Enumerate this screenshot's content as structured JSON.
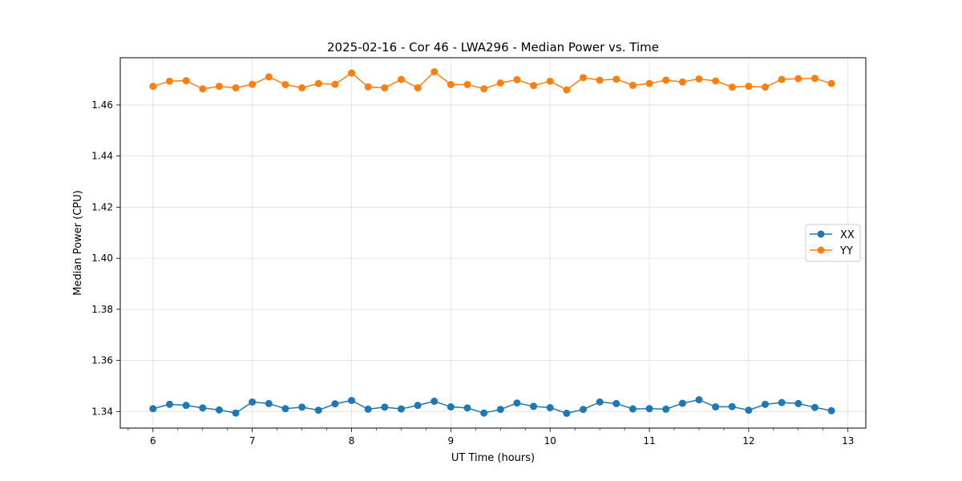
{
  "chart_data": {
    "type": "line",
    "title": "2025-02-16 - Cor 46 - LWA296 - Median Power vs. Time",
    "xlabel": "UT Time (hours)",
    "ylabel": "Median Power (CPU)",
    "xlim": [
      5.67,
      13.18
    ],
    "ylim": [
      1.3335,
      1.4785
    ],
    "x_ticks": [
      6,
      7,
      8,
      9,
      10,
      11,
      12,
      13
    ],
    "x_tick_labels": [
      "6",
      "7",
      "8",
      "9",
      "10",
      "11",
      "12",
      "13"
    ],
    "x_minor_step": 0.25,
    "y_ticks": [
      1.34,
      1.36,
      1.38,
      1.4,
      1.42,
      1.44,
      1.46
    ],
    "y_tick_labels": [
      "1.34",
      "1.36",
      "1.38",
      "1.40",
      "1.42",
      "1.44",
      "1.46"
    ],
    "grid": true,
    "legend_position": "center-right",
    "x": [
      6.0,
      6.1667,
      6.3333,
      6.5,
      6.6667,
      6.8333,
      7.0,
      7.1667,
      7.3333,
      7.5,
      7.6667,
      7.8333,
      8.0,
      8.1667,
      8.3333,
      8.5,
      8.6667,
      8.8333,
      9.0,
      9.1667,
      9.3333,
      9.5,
      9.6667,
      9.8333,
      10.0,
      10.1667,
      10.3333,
      10.5,
      10.6667,
      10.8333,
      11.0,
      11.1667,
      11.3333,
      11.5,
      11.6667,
      11.8333,
      12.0,
      12.1667,
      12.3333,
      12.5,
      12.6667,
      12.8333
    ],
    "series": [
      {
        "name": "XX",
        "color": "#1f77b4",
        "values": [
          1.3411,
          1.3428,
          1.3424,
          1.3414,
          1.3406,
          1.3394,
          1.3437,
          1.3431,
          1.3411,
          1.3417,
          1.3405,
          1.343,
          1.3443,
          1.3409,
          1.3417,
          1.341,
          1.3424,
          1.344,
          1.3418,
          1.3414,
          1.3394,
          1.3408,
          1.3433,
          1.342,
          1.3415,
          1.3393,
          1.3408,
          1.3437,
          1.3431,
          1.341,
          1.3411,
          1.3409,
          1.3432,
          1.3446,
          1.3418,
          1.3419,
          1.3405,
          1.3428,
          1.3435,
          1.3431,
          1.3416,
          1.3403
        ]
      },
      {
        "name": "YY",
        "color": "#ff7f0e",
        "values": [
          1.4673,
          1.4693,
          1.4695,
          1.4663,
          1.4673,
          1.4667,
          1.4681,
          1.471,
          1.468,
          1.4667,
          1.4684,
          1.4681,
          1.4725,
          1.4671,
          1.4667,
          1.47,
          1.4667,
          1.473,
          1.468,
          1.468,
          1.4663,
          1.4686,
          1.4699,
          1.4676,
          1.4693,
          1.4659,
          1.4707,
          1.4697,
          1.4701,
          1.4677,
          1.4684,
          1.4697,
          1.469,
          1.4702,
          1.4694,
          1.467,
          1.4673,
          1.467,
          1.47,
          1.4703,
          1.4704,
          1.4684
        ]
      }
    ]
  }
}
